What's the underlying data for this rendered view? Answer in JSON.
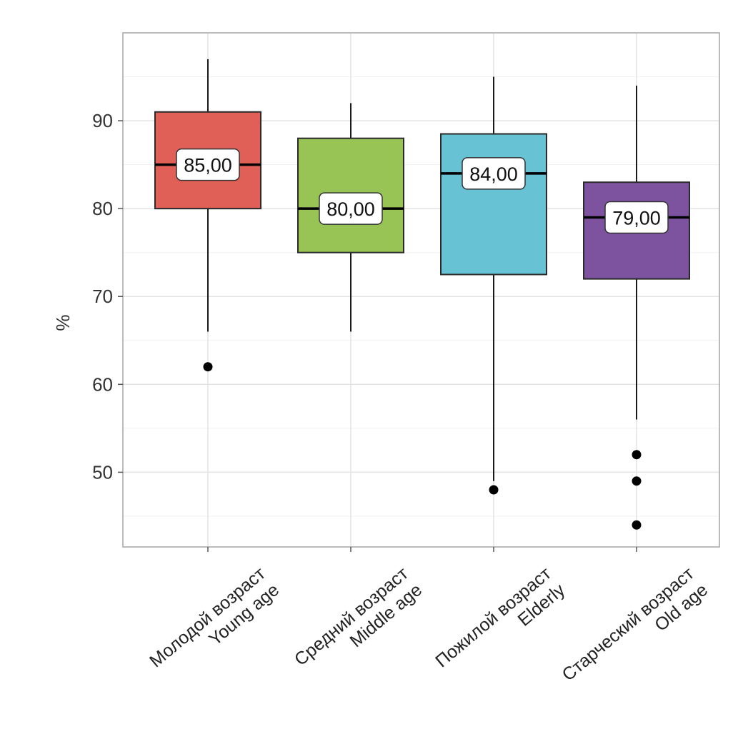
{
  "chart_data": {
    "type": "boxplot",
    "title": "",
    "xlabel": "",
    "ylabel": "%",
    "ylim": [
      41.5,
      100
    ],
    "yticks": [
      50,
      60,
      70,
      80,
      90
    ],
    "grid": true,
    "series": [
      {
        "name": "young",
        "label_ru": "Молодой возраст",
        "label_en": "Young age",
        "color": "#E05F56",
        "whisker_low": 66,
        "q1": 80,
        "median": 85,
        "q3": 91,
        "whisker_high": 97,
        "outliers": [
          62
        ],
        "median_label": "85,00"
      },
      {
        "name": "middle",
        "label_ru": "Средний возраст",
        "label_en": "Middle age",
        "color": "#97C454",
        "whisker_low": 66,
        "q1": 75,
        "median": 80,
        "q3": 88,
        "whisker_high": 92,
        "outliers": [],
        "median_label": "80,00"
      },
      {
        "name": "elderly",
        "label_ru": "Пожилой возраст",
        "label_en": "Elderly",
        "color": "#67C3D3",
        "whisker_low": 49,
        "q1": 72.5,
        "median": 84,
        "q3": 88.5,
        "whisker_high": 95,
        "outliers": [
          48
        ],
        "median_label": "84,00"
      },
      {
        "name": "old",
        "label_ru": "Старческий возраст",
        "label_en": "Old age",
        "color": "#7D53A0",
        "whisker_low": 56,
        "q1": 72,
        "median": 79,
        "q3": 83,
        "whisker_high": 94,
        "outliers": [
          52,
          49,
          44
        ],
        "median_label": "79,00"
      }
    ]
  }
}
